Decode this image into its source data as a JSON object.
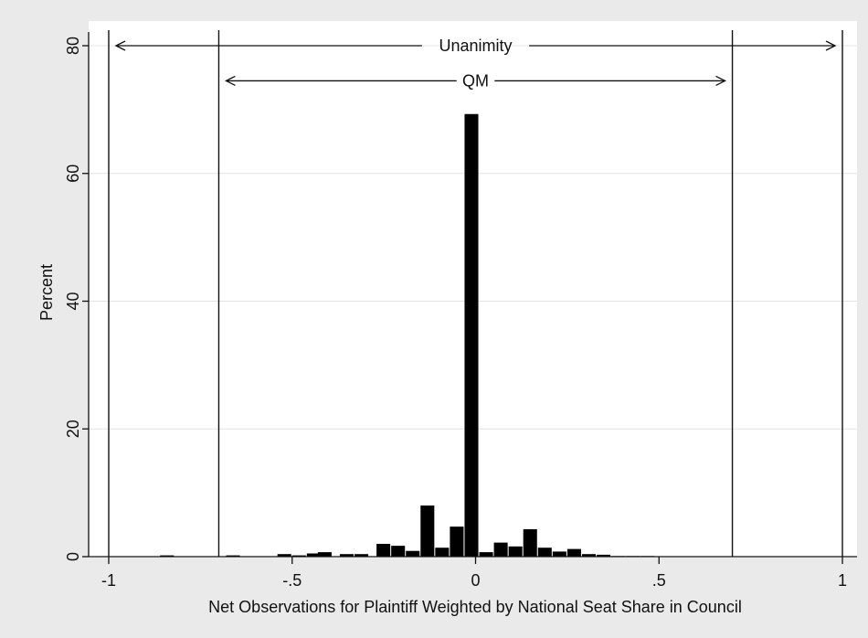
{
  "chart_data": {
    "type": "bar",
    "title": "",
    "xlabel": "Net Observations for Plaintiff Weighted by National Seat Share in Council",
    "ylabel": "Percent",
    "xlim": [
      -1,
      1
    ],
    "ylim": [
      0,
      80
    ],
    "xticks": [
      -1,
      -0.5,
      0,
      0.5,
      1
    ],
    "xtick_labels": [
      "-1",
      "-.5",
      "0",
      ".5",
      "1"
    ],
    "yticks": [
      0,
      20,
      40,
      60,
      80
    ],
    "ytick_labels": [
      "0",
      "20",
      "40",
      "60",
      "80"
    ],
    "grid": "horizontal",
    "bin_width": 0.04,
    "bins": [
      {
        "x": -0.84,
        "value": 0.2
      },
      {
        "x": -0.66,
        "value": 0.2
      },
      {
        "x": -0.52,
        "value": 0.4
      },
      {
        "x": -0.48,
        "value": 0.2
      },
      {
        "x": -0.44,
        "value": 0.5
      },
      {
        "x": -0.41,
        "value": 0.7
      },
      {
        "x": -0.35,
        "value": 0.4
      },
      {
        "x": -0.31,
        "value": 0.4
      },
      {
        "x": -0.25,
        "value": 2.0
      },
      {
        "x": -0.21,
        "value": 1.7
      },
      {
        "x": -0.17,
        "value": 0.9
      },
      {
        "x": -0.13,
        "value": 8.0
      },
      {
        "x": -0.09,
        "value": 1.4
      },
      {
        "x": -0.05,
        "value": 4.7
      },
      {
        "x": -0.01,
        "value": 69.3
      },
      {
        "x": 0.03,
        "value": 0.7
      },
      {
        "x": 0.07,
        "value": 2.2
      },
      {
        "x": 0.11,
        "value": 1.6
      },
      {
        "x": 0.15,
        "value": 4.3
      },
      {
        "x": 0.19,
        "value": 1.4
      },
      {
        "x": 0.23,
        "value": 0.8
      },
      {
        "x": 0.27,
        "value": 1.2
      },
      {
        "x": 0.31,
        "value": 0.4
      },
      {
        "x": 0.35,
        "value": 0.3
      },
      {
        "x": 0.39,
        "value": 0.1
      },
      {
        "x": 0.43,
        "value": 0.1
      },
      {
        "x": 0.47,
        "value": 0.1
      }
    ],
    "vertical_lines": [
      -1,
      -0.7,
      0.7,
      1
    ],
    "annotations": [
      {
        "label": "Unanimity",
        "from": -1,
        "to": 1,
        "y": 80
      },
      {
        "label": "QM",
        "from": -0.7,
        "to": 0.7,
        "y": 74.5
      }
    ],
    "colors": {
      "bar": "#000000",
      "plot_bg": "#ffffff",
      "outer_bg": "#eaeaea",
      "grid": "#e4e4e4"
    }
  }
}
